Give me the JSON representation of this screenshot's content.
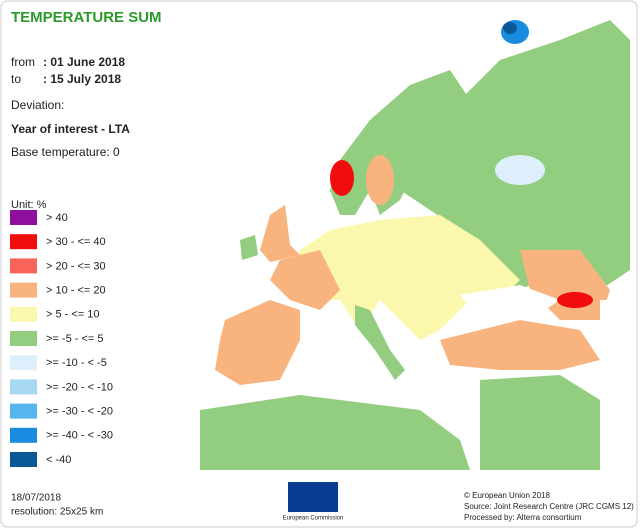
{
  "header": {
    "title": "TEMPERATURE SUM",
    "from_label": "from",
    "from_value": ": 01 June 2018",
    "to_label": "to",
    "to_value": ": 15 July 2018",
    "deviation": "Deviation:",
    "comparison": "Year of interest - LTA",
    "base": "Base temperature: 0"
  },
  "legend": {
    "unit": "Unit: %",
    "items": [
      {
        "label": "> 40",
        "color": "#8e0f9e"
      },
      {
        "label": "> 30 - <= 40",
        "color": "#f20d0d"
      },
      {
        "label": "> 20 - <= 30",
        "color": "#f8635a"
      },
      {
        "label": "> 10 - <= 20",
        "color": "#f8b37e"
      },
      {
        "label": "> 5 - <= 10",
        "color": "#fbf8ad"
      },
      {
        "label": ">= -5 - <= 5",
        "color": "#92cd80"
      },
      {
        "label": ">= -10 - < -5",
        "color": "#ddeffa"
      },
      {
        "label": ">= -20 - < -10",
        "color": "#a6d8f4"
      },
      {
        "label": ">= -30 - < -20",
        "color": "#55b6ee"
      },
      {
        "label": ">= -40 - < -30",
        "color": "#1a8ce0"
      },
      {
        "label": "< -40",
        "color": "#0b5896"
      }
    ]
  },
  "footer": {
    "date": "18/07/2018",
    "resolution": "resolution: 25x25 km",
    "logo": "European Commission",
    "copyright": "© European Union 2018",
    "source": "Source: Joint Research Centre (JRC CGMS 12)",
    "processed": "Processed by: Alterra consortium"
  }
}
